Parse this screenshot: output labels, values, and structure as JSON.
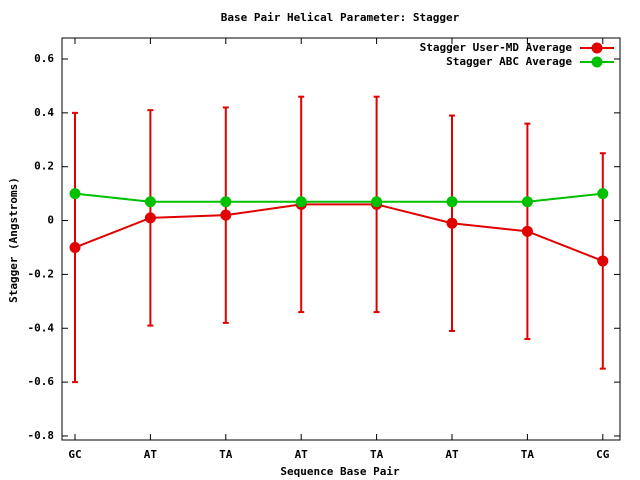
{
  "chart_data": {
    "type": "line",
    "title": "Base Pair Helical Parameter: Stagger",
    "x_label": "Sequence Base Pair",
    "y_label": "Stagger (Angstroms)",
    "categories": [
      "GC",
      "AT",
      "TA",
      "AT",
      "TA",
      "AT",
      "TA",
      "CG"
    ],
    "series": [
      {
        "name": "Stagger User-MD Average",
        "color": "#e00000",
        "values": [
          -0.1,
          0.01,
          0.02,
          0.06,
          0.06,
          -0.01,
          -0.04,
          -0.15
        ],
        "errors": [
          0.5,
          0.4,
          0.4,
          0.4,
          0.4,
          0.4,
          0.4,
          0.4
        ]
      },
      {
        "name": "Stagger ABC Average",
        "color": "#00c000",
        "values": [
          0.1,
          0.07,
          0.07,
          0.07,
          0.07,
          0.07,
          0.07,
          0.1
        ]
      }
    ],
    "ylim": [
      -0.815,
      0.678
    ],
    "yticks": [
      -0.8,
      -0.6,
      -0.4,
      -0.2,
      0,
      0.2,
      0.4,
      0.6
    ],
    "legend": "top-right"
  }
}
